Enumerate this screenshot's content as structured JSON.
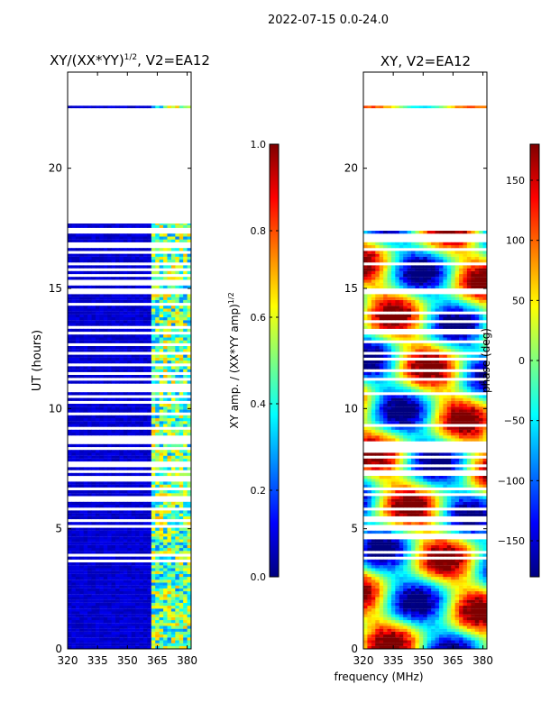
{
  "suptitle": "2022-07-15 0.0-24.0",
  "xlabel": "frequency (MHz)",
  "colormap": [
    "#00007f",
    "#0000ff",
    "#007fff",
    "#00ffff",
    "#7fff7f",
    "#ffff00",
    "#ff7f00",
    "#ff0000",
    "#7f0000"
  ],
  "chart_data": [
    {
      "type": "heatmap",
      "title_main": "XY/(XX*YY)",
      "title_sup": "1/2",
      "title_tail": ", V2=EA12",
      "xlabel": "frequency (MHz)",
      "ylabel": "UT (hours)",
      "xlim": [
        320,
        382
      ],
      "ylim": [
        0,
        24
      ],
      "xticks": [
        320,
        335,
        350,
        365,
        380
      ],
      "yticks": [
        0,
        5,
        10,
        15,
        20
      ],
      "colorbar": {
        "label_main": "XY amp. / (XX*YY amp)",
        "label_sup": "1/2",
        "range": [
          0.0,
          1.0
        ],
        "ticks": [
          "0.0",
          "0.2",
          "0.4",
          "0.6",
          "0.8",
          "1.0"
        ],
        "tick_values": [
          0.0,
          0.2,
          0.4,
          0.6,
          0.8,
          1.0
        ]
      },
      "data_coverage_hours": [
        [
          0,
          17.7
        ],
        [
          22.5,
          22.6
        ]
      ],
      "description_values": "Low (~0.05) below 362 MHz; elevated 0.3-0.6 in band 362-380 MHz"
    },
    {
      "type": "heatmap",
      "title": "XY, V2=EA12",
      "xlabel": "frequency (MHz)",
      "ylabel": "",
      "xlim": [
        320,
        382
      ],
      "ylim": [
        0,
        24
      ],
      "xticks": [
        320,
        335,
        350,
        365,
        380
      ],
      "yticks": [
        0,
        5,
        10,
        15,
        20
      ],
      "colorbar": {
        "label": "phase (deg)",
        "range": [
          -180,
          180
        ],
        "ticks": [
          "150",
          "100",
          "50",
          "0",
          "−50",
          "−100",
          "−150"
        ],
        "tick_values": [
          150,
          100,
          50,
          0,
          -50,
          -100,
          -150
        ]
      },
      "data_coverage_hours": [
        [
          0,
          17.7
        ],
        [
          22.5,
          22.6
        ]
      ],
      "description_values": "Phase wrapping -180 to 180 deg, diagonal fringe pattern"
    }
  ]
}
